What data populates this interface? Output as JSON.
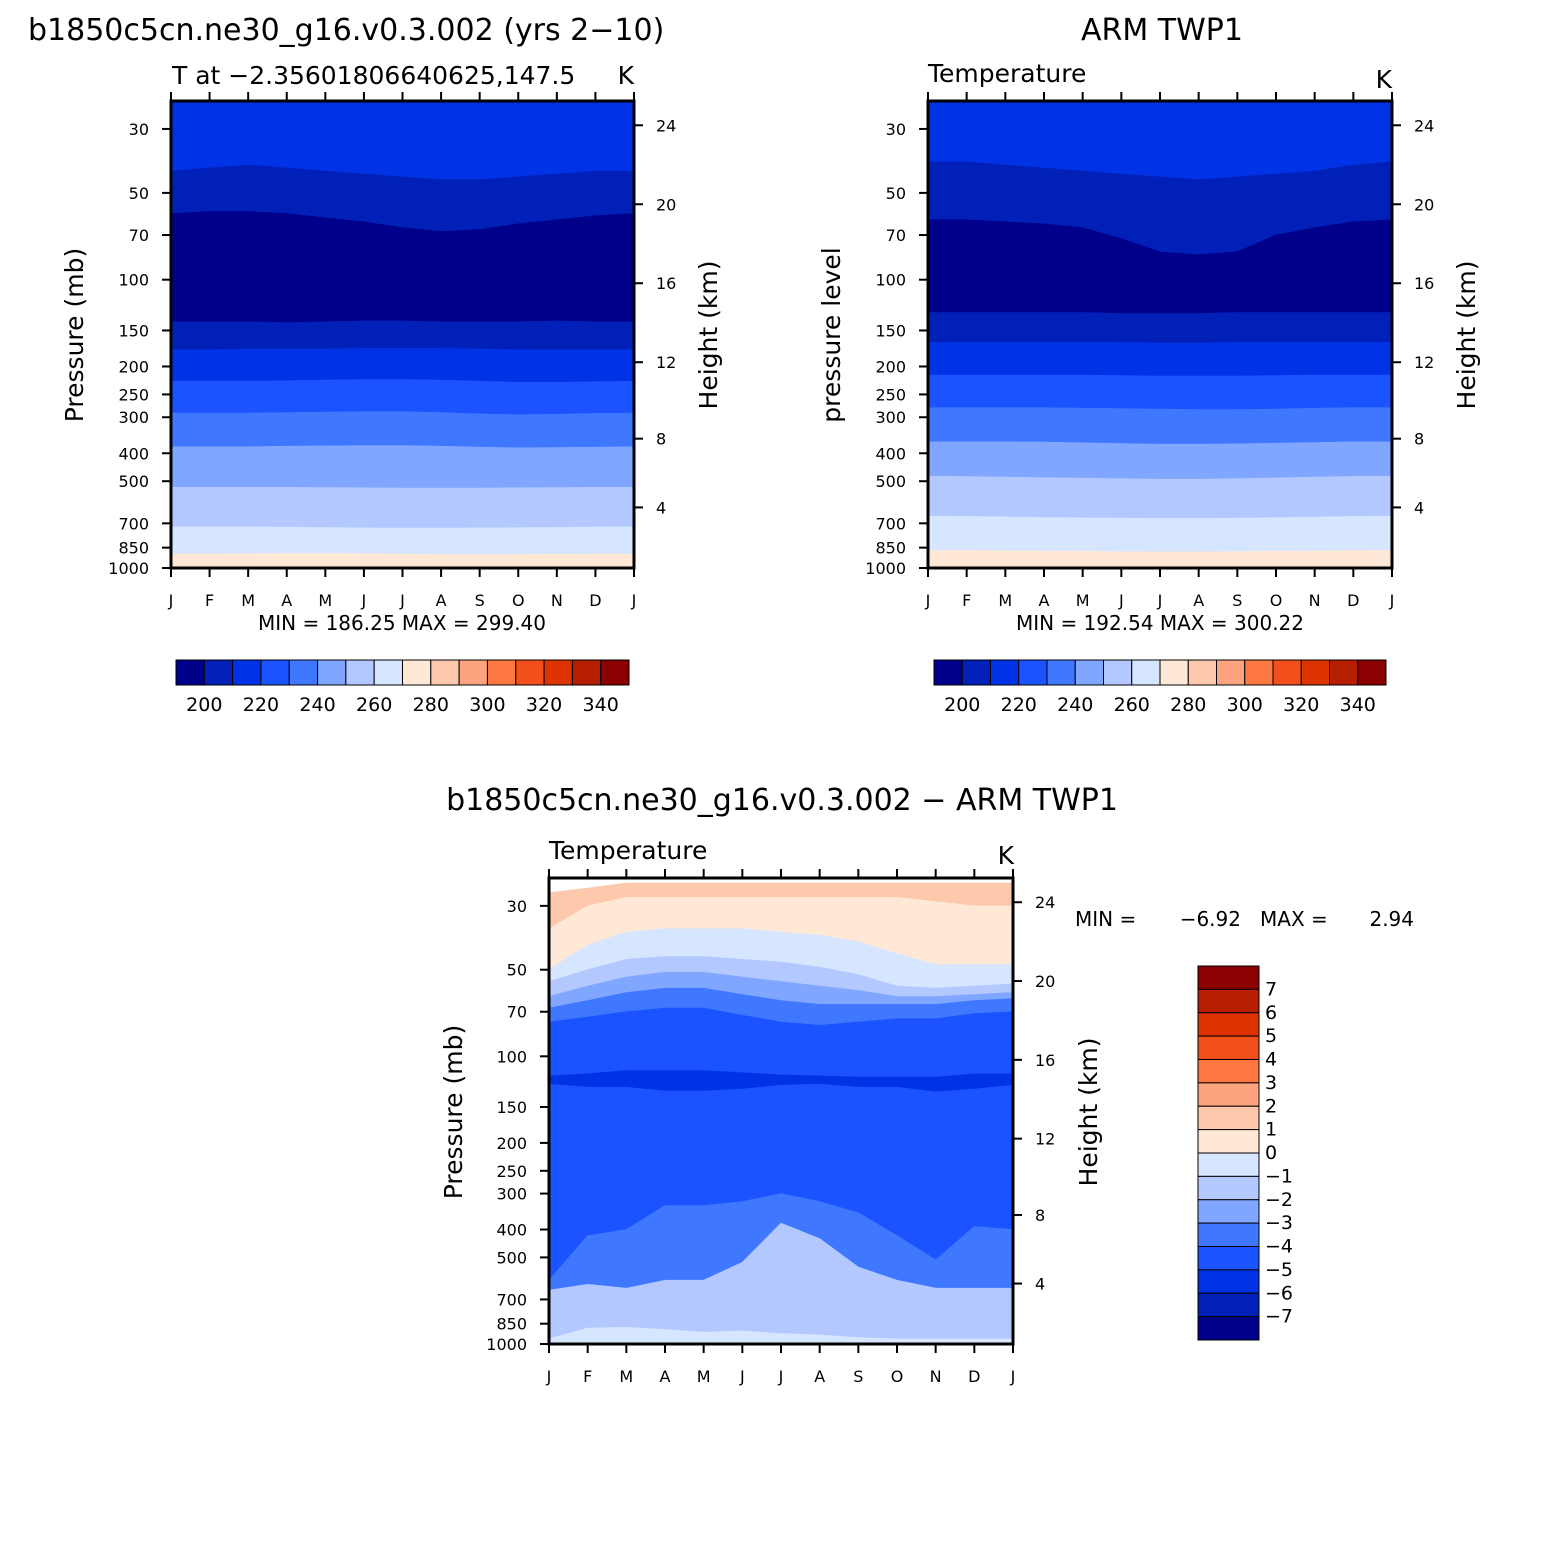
{
  "chart_data": [
    {
      "type": "heatmap",
      "id": "model",
      "title": "b1850c5cn.ne30_g16.v0.3.002 (yrs 2−10)",
      "subtitle_left": "T at −2.35601806640625,147.5",
      "subtitle_right": "K",
      "ylabel": "Pressure (mb)",
      "ylabel_right": "Height (km)",
      "x_ticks": [
        "J",
        "F",
        "M",
        "A",
        "M",
        "J",
        "J",
        "A",
        "S",
        "O",
        "N",
        "D",
        "J"
      ],
      "y_ticks": [
        "30",
        "50",
        "70",
        "100",
        "150",
        "200",
        "250",
        "300",
        "400",
        "500",
        "700",
        "850",
        "1000"
      ],
      "y_ticks_right": [
        "24",
        "20",
        "16",
        "12",
        "8",
        "4"
      ],
      "min_max": "MIN = 186.25 MAX = 299.40",
      "colorbar_labels": [
        "200",
        "220",
        "240",
        "260",
        "280",
        "300",
        "320",
        "340"
      ],
      "boundaries_mb": [
        [
          42,
          41,
          40,
          41,
          42,
          43,
          44,
          45,
          45,
          44,
          43,
          42,
          42
        ],
        [
          59,
          58,
          58,
          59,
          61,
          63,
          66,
          68,
          67,
          64,
          62,
          60,
          59
        ],
        [
          140,
          140,
          140,
          141,
          140,
          139,
          139,
          140,
          140,
          140,
          139,
          140,
          140
        ],
        [
          175,
          175,
          174,
          174,
          174,
          173,
          173,
          173,
          174,
          175,
          175,
          175,
          175
        ],
        [
          225,
          225,
          225,
          224,
          223,
          222,
          222,
          223,
          225,
          227,
          227,
          226,
          225
        ],
        [
          290,
          290,
          290,
          289,
          288,
          287,
          287,
          289,
          292,
          294,
          293,
          291,
          290
        ],
        [
          380,
          380,
          380,
          378,
          377,
          376,
          376,
          378,
          381,
          383,
          382,
          381,
          380
        ],
        [
          525,
          525,
          525,
          525,
          526,
          527,
          528,
          528,
          528,
          527,
          526,
          525,
          525
        ],
        [
          720,
          720,
          720,
          722,
          724,
          726,
          727,
          727,
          726,
          725,
          723,
          721,
          720
        ],
        [
          895,
          895,
          893,
          892,
          892,
          893,
          895,
          897,
          898,
          897,
          896,
          895,
          895
        ]
      ],
      "band_colors": [
        "#0033e6",
        "#0020b8",
        "#00008b",
        "#0020b8",
        "#0033e6",
        "#1a53ff",
        "#3f78ff",
        "#80a6ff",
        "#b3c8ff",
        "#d6e6ff",
        "#ffe8d6",
        "#fdc8ac",
        "#fda47f"
      ]
    },
    {
      "type": "heatmap",
      "id": "obs",
      "title": "ARM TWP1",
      "subtitle_left": "Temperature",
      "subtitle_right": "K",
      "ylabel": "pressure level",
      "ylabel_right": "Height (km)",
      "x_ticks": [
        "J",
        "F",
        "M",
        "A",
        "M",
        "J",
        "J",
        "A",
        "S",
        "O",
        "N",
        "D",
        "J"
      ],
      "y_ticks": [
        "30",
        "50",
        "70",
        "100",
        "150",
        "200",
        "250",
        "300",
        "400",
        "500",
        "700",
        "850",
        "1000"
      ],
      "y_ticks_right": [
        "24",
        "20",
        "16",
        "12",
        "8",
        "4"
      ],
      "min_max": "MIN = 192.54 MAX = 300.22",
      "colorbar_labels": [
        "200",
        "220",
        "240",
        "260",
        "280",
        "300",
        "320",
        "340"
      ],
      "boundaries_mb": [
        [
          39,
          39,
          40,
          41,
          42,
          43,
          44,
          45,
          44,
          43,
          42,
          40,
          39
        ],
        [
          62,
          62,
          63,
          64,
          66,
          72,
          80,
          82,
          80,
          70,
          66,
          63,
          62
        ],
        [
          130,
          130,
          130,
          130,
          130,
          131,
          131,
          131,
          130,
          130,
          130,
          130,
          130
        ],
        [
          165,
          165,
          165,
          165,
          165,
          165,
          166,
          166,
          165,
          165,
          165,
          165,
          165
        ],
        [
          214,
          214,
          214,
          214,
          214,
          215,
          216,
          216,
          216,
          215,
          214,
          214,
          214
        ],
        [
          278,
          278,
          278,
          278,
          279,
          280,
          281,
          282,
          282,
          281,
          279,
          278,
          278
        ],
        [
          365,
          365,
          365,
          366,
          368,
          370,
          372,
          372,
          371,
          369,
          367,
          365,
          365
        ],
        [
          480,
          482,
          484,
          486,
          488,
          490,
          492,
          492,
          490,
          487,
          484,
          481,
          480
        ],
        [
          660,
          662,
          665,
          668,
          670,
          672,
          673,
          673,
          672,
          669,
          666,
          662,
          660
        ],
        [
          870,
          870,
          872,
          874,
          876,
          878,
          879,
          879,
          877,
          875,
          873,
          871,
          870
        ]
      ],
      "band_colors": [
        "#0033e6",
        "#0020b8",
        "#00008b",
        "#0020b8",
        "#0033e6",
        "#1a53ff",
        "#3f78ff",
        "#80a6ff",
        "#b3c8ff",
        "#d6e6ff",
        "#ffe8d6",
        "#fdc8ac",
        "#fda47f"
      ]
    },
    {
      "type": "heatmap",
      "id": "diff",
      "title": "b1850c5cn.ne30_g16.v0.3.002 − ARM TWP1",
      "subtitle_left": "Temperature",
      "subtitle_right": "K",
      "ylabel": "Pressure (mb)",
      "ylabel_right": "Height (km)",
      "x_ticks": [
        "J",
        "F",
        "M",
        "A",
        "M",
        "J",
        "J",
        "A",
        "S",
        "O",
        "N",
        "D",
        "J"
      ],
      "y_ticks": [
        "30",
        "50",
        "70",
        "100",
        "150",
        "200",
        "250",
        "300",
        "400",
        "500",
        "700",
        "850",
        "1000"
      ],
      "y_ticks_right": [
        "24",
        "20",
        "16",
        "12",
        "8",
        "4"
      ],
      "min_max_label": "MIN =",
      "min_value": "−6.92",
      "max_label": "MAX =",
      "max_value": "2.94",
      "colorbar_labels": [
        "7",
        "6",
        "5",
        "4",
        "3",
        "2",
        "1",
        "0",
        "−1",
        "−2",
        "−3",
        "−4",
        "−5",
        "−6",
        "−7"
      ],
      "colorbar_colors": [
        "#8b0000",
        "#b51e00",
        "#dc3300",
        "#f24f1c",
        "#fd7740",
        "#fda47f",
        "#fdc8ac",
        "#ffe8d6",
        "#d6e6ff",
        "#b3c8ff",
        "#80a6ff",
        "#3f78ff",
        "#1a53ff",
        "#0033e6",
        "#0020b8",
        "#00008b"
      ],
      "boundaries_mb": [
        [
          27,
          26,
          25,
          25,
          25,
          25,
          25,
          25,
          25,
          25,
          25,
          25,
          25
        ],
        [
          36,
          30,
          28,
          28,
          28,
          28,
          28,
          28,
          28,
          28,
          29,
          30,
          30
        ],
        [
          50,
          41,
          37,
          36,
          36,
          36,
          37,
          38,
          40,
          44,
          48,
          48,
          48
        ],
        [
          55,
          50,
          46,
          45,
          45,
          46,
          47,
          49,
          52,
          57,
          58,
          57,
          56
        ],
        [
          62,
          57,
          53,
          51,
          51,
          53,
          55,
          57,
          59,
          62,
          62,
          61,
          60
        ],
        [
          68,
          64,
          60,
          58,
          58,
          61,
          64,
          66,
          66,
          66,
          66,
          64,
          63
        ],
        [
          76,
          73,
          70,
          68,
          68,
          72,
          76,
          78,
          76,
          74,
          74,
          71,
          70
        ],
        [
          117,
          115,
          112,
          112,
          112,
          114,
          116,
          117,
          118,
          118,
          118,
          115,
          115
        ],
        [
          125,
          128,
          128,
          132,
          132,
          130,
          126,
          125,
          128,
          128,
          133,
          130,
          126
        ],
        [
          600,
          420,
          400,
          330,
          330,
          320,
          300,
          320,
          350,
          420,
          510,
          390,
          400
        ],
        [
          650,
          620,
          640,
          600,
          600,
          520,
          380,
          430,
          540,
          600,
          640,
          640,
          640
        ],
        [
          960,
          880,
          875,
          890,
          910,
          900,
          920,
          930,
          950,
          960,
          960,
          960,
          960
        ]
      ],
      "band_colors": [
        "#ffffff",
        "#fdc8ac",
        "#ffe8d6",
        "#d6e6ff",
        "#b3c8ff",
        "#80a6ff",
        "#3f78ff",
        "#1a53ff",
        "#0033e6",
        "#1a53ff",
        "#3f78ff",
        "#b3c8ff",
        "#d6e6ff",
        "#b3c8ff"
      ]
    }
  ]
}
